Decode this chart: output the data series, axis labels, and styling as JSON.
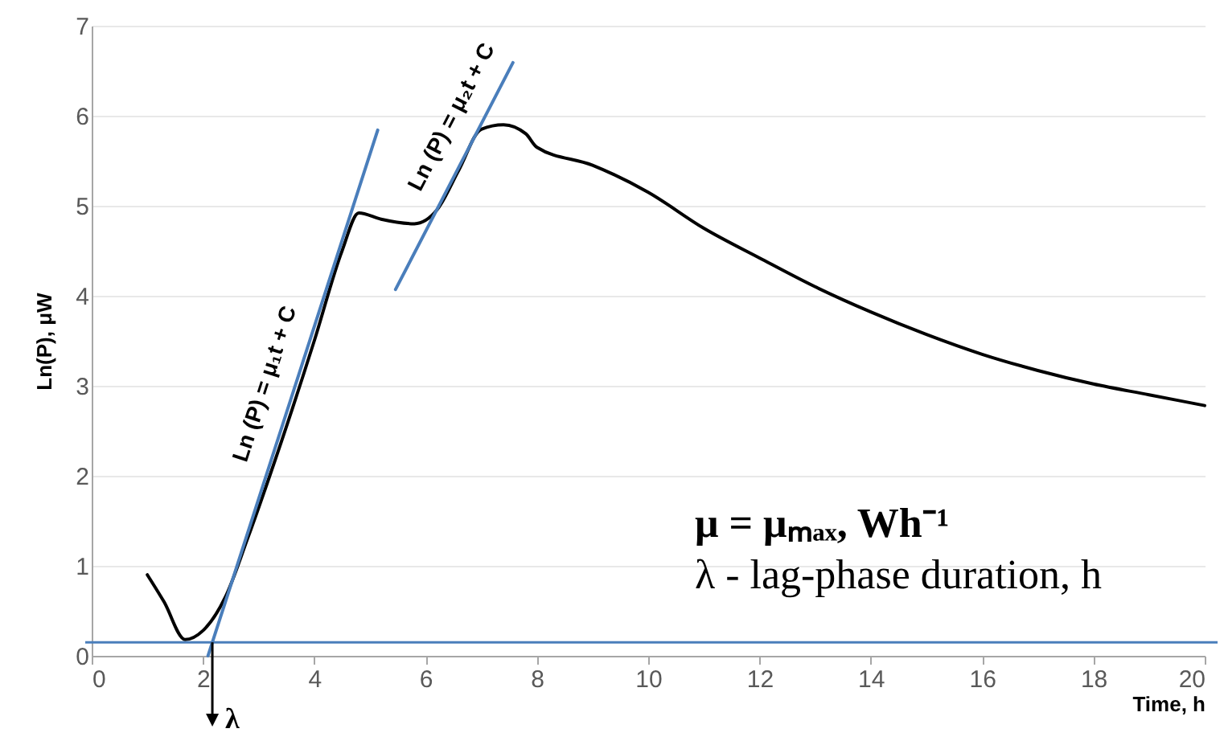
{
  "chart_data": {
    "type": "line",
    "xlabel": "Time, h",
    "ylabel": "Ln(P), μW",
    "xlim": [
      0,
      20
    ],
    "xticks": [
      0,
      2,
      4,
      6,
      8,
      10,
      12,
      14,
      16,
      18,
      20
    ],
    "ylim": [
      0,
      7
    ],
    "yticks": [
      0,
      1,
      2,
      3,
      4,
      5,
      6,
      7
    ],
    "grid": "y",
    "series": [
      {
        "color": "#000000",
        "x": [
          1.0,
          1.3,
          1.68,
          2.0,
          2.4,
          2.8,
          3.2,
          4.0,
          4.5,
          4.8,
          5.2,
          5.8,
          6.2,
          6.6,
          7.0,
          7.4,
          7.8,
          8.0,
          9.0,
          10,
          11,
          12,
          13,
          14,
          15,
          16,
          17,
          18,
          19,
          20
        ],
        "values": [
          0.9,
          0.6,
          0.18,
          0.28,
          0.65,
          1.3,
          2.0,
          3.5,
          4.5,
          4.92,
          4.85,
          4.8,
          4.95,
          5.4,
          5.85,
          5.9,
          5.8,
          5.65,
          5.45,
          5.15,
          4.75,
          4.42,
          4.1,
          3.82,
          3.57,
          3.35,
          3.17,
          3.02,
          2.9,
          2.78
        ]
      },
      {
        "type": "line",
        "color": "#4a7ebb",
        "x": [
          2.09,
          5.14
        ],
        "values": [
          0,
          5.84
        ]
      },
      {
        "type": "line",
        "color": "#4a7ebb",
        "x": [
          5.46,
          7.57
        ],
        "values": [
          4.07,
          6.59
        ]
      }
    ],
    "ref_lines": [
      {
        "axis": "y",
        "value": 0.15,
        "color": "#4a7ebb"
      }
    ],
    "annotations": [
      "Ln (P) = μ₁t + C",
      "Ln (P) = μ₂t + C",
      "μ = μₘₐₓ, Wh⁻¹",
      "λ - lag-phase duration, h",
      "λ"
    ]
  }
}
